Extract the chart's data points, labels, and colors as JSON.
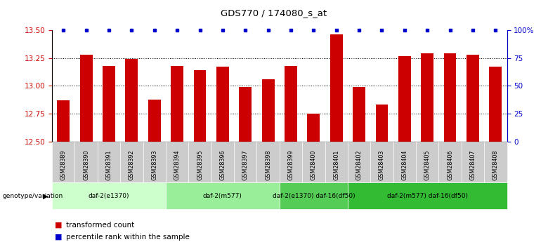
{
  "title": "GDS770 / 174080_s_at",
  "samples": [
    "GSM28389",
    "GSM28390",
    "GSM28391",
    "GSM28392",
    "GSM28393",
    "GSM28394",
    "GSM28395",
    "GSM28396",
    "GSM28397",
    "GSM28398",
    "GSM28399",
    "GSM28400",
    "GSM28401",
    "GSM28402",
    "GSM28403",
    "GSM28404",
    "GSM28405",
    "GSM28406",
    "GSM28407",
    "GSM28408"
  ],
  "bar_values": [
    12.87,
    13.28,
    13.18,
    13.24,
    12.88,
    13.18,
    13.14,
    13.17,
    12.99,
    13.06,
    13.18,
    12.75,
    13.46,
    12.99,
    12.83,
    13.27,
    13.29,
    13.29,
    13.28,
    13.17
  ],
  "bar_color": "#cc0000",
  "percentile_color": "#0000cc",
  "ylim_left": [
    12.5,
    13.5
  ],
  "ylim_right": [
    0,
    100
  ],
  "yticks_left": [
    12.5,
    12.75,
    13.0,
    13.25,
    13.5
  ],
  "yticks_right": [
    0,
    25,
    50,
    75,
    100
  ],
  "ytick_labels_right": [
    "0",
    "25",
    "50",
    "75",
    "100%"
  ],
  "groups": [
    {
      "label": "daf-2(e1370)",
      "start": 0,
      "end": 5,
      "color": "#ccffcc"
    },
    {
      "label": "daf-2(m577)",
      "start": 5,
      "end": 10,
      "color": "#99ee99"
    },
    {
      "label": "daf-2(e1370) daf-16(df50)",
      "start": 10,
      "end": 13,
      "color": "#55cc55"
    },
    {
      "label": "daf-2(m577) daf-16(df50)",
      "start": 13,
      "end": 20,
      "color": "#33bb33"
    }
  ],
  "group_row_label": "genotype/variation",
  "legend_bar_label": "transformed count",
  "legend_pct_label": "percentile rank within the sample",
  "bg_color": "#ffffff",
  "tick_color_left": "#cc0000",
  "tick_color_right": "#0000cc",
  "sample_bg": "#cccccc"
}
